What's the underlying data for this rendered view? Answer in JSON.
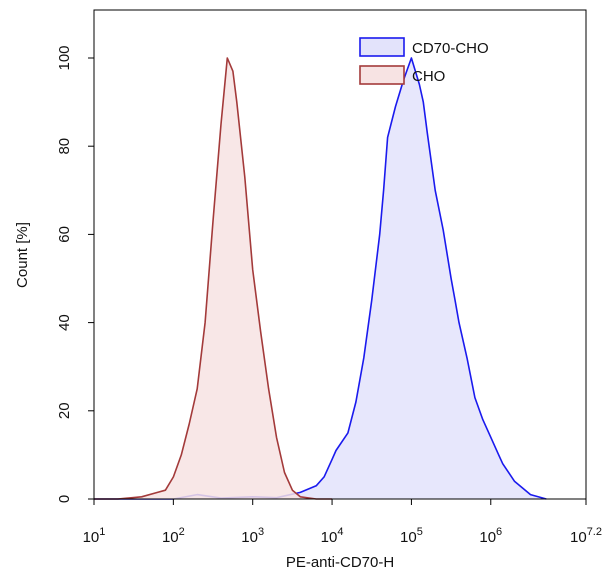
{
  "chart_data": {
    "type": "area",
    "xlabel": "PE-anti-CD70-H",
    "ylabel": "Count [%]",
    "x_scale": "log",
    "xlim_exp": [
      1,
      7.2
    ],
    "ylim": [
      0,
      110
    ],
    "x_ticks": [
      {
        "base": "10",
        "exp": "1",
        "value": 1
      },
      {
        "base": "10",
        "exp": "2",
        "value": 2
      },
      {
        "base": "10",
        "exp": "3",
        "value": 3
      },
      {
        "base": "10",
        "exp": "4",
        "value": 4
      },
      {
        "base": "10",
        "exp": "5",
        "value": 5
      },
      {
        "base": "10",
        "exp": "6",
        "value": 6
      },
      {
        "base": "10",
        "exp": "7.2",
        "value": 7.2
      }
    ],
    "y_ticks": [
      "0",
      "20",
      "40",
      "60",
      "80",
      "100"
    ],
    "legend_position": "top-right",
    "grid": false,
    "series": [
      {
        "name": "CD70-CHO",
        "line_color": "#1a1aee",
        "fill_color": "#e3e3fb",
        "points": [
          [
            1.0,
            0
          ],
          [
            2.0,
            0
          ],
          [
            2.3,
            1
          ],
          [
            2.6,
            0.2
          ],
          [
            3.0,
            0.5
          ],
          [
            3.3,
            0.3
          ],
          [
            3.6,
            1.5
          ],
          [
            3.8,
            3
          ],
          [
            3.9,
            5
          ],
          [
            4.0,
            9
          ],
          [
            4.05,
            11
          ],
          [
            4.2,
            15
          ],
          [
            4.3,
            22
          ],
          [
            4.4,
            32
          ],
          [
            4.5,
            45
          ],
          [
            4.6,
            60
          ],
          [
            4.65,
            70
          ],
          [
            4.7,
            82
          ],
          [
            4.8,
            89
          ],
          [
            4.9,
            95
          ],
          [
            5.0,
            100
          ],
          [
            5.1,
            94
          ],
          [
            5.15,
            90
          ],
          [
            5.2,
            83
          ],
          [
            5.3,
            70
          ],
          [
            5.4,
            61
          ],
          [
            5.5,
            50
          ],
          [
            5.55,
            45
          ],
          [
            5.6,
            40
          ],
          [
            5.7,
            32
          ],
          [
            5.8,
            23
          ],
          [
            5.9,
            18
          ],
          [
            6.0,
            14
          ],
          [
            6.1,
            10
          ],
          [
            6.15,
            8
          ],
          [
            6.3,
            4
          ],
          [
            6.5,
            1
          ],
          [
            6.7,
            0
          ]
        ]
      },
      {
        "name": "CHO",
        "line_color": "#a33a3a",
        "fill_color": "#f7e3e3",
        "points": [
          [
            1.0,
            0
          ],
          [
            1.3,
            0
          ],
          [
            1.6,
            0.5
          ],
          [
            1.8,
            1.5
          ],
          [
            1.9,
            2
          ],
          [
            2.0,
            5
          ],
          [
            2.1,
            10
          ],
          [
            2.2,
            17
          ],
          [
            2.3,
            25
          ],
          [
            2.4,
            40
          ],
          [
            2.5,
            63
          ],
          [
            2.6,
            85
          ],
          [
            2.68,
            100
          ],
          [
            2.75,
            97
          ],
          [
            2.8,
            90
          ],
          [
            2.9,
            73
          ],
          [
            3.0,
            52
          ],
          [
            3.1,
            38
          ],
          [
            3.2,
            25
          ],
          [
            3.3,
            14
          ],
          [
            3.4,
            6
          ],
          [
            3.5,
            2
          ],
          [
            3.6,
            0.5
          ],
          [
            3.8,
            0
          ],
          [
            4.0,
            0
          ]
        ]
      }
    ]
  }
}
